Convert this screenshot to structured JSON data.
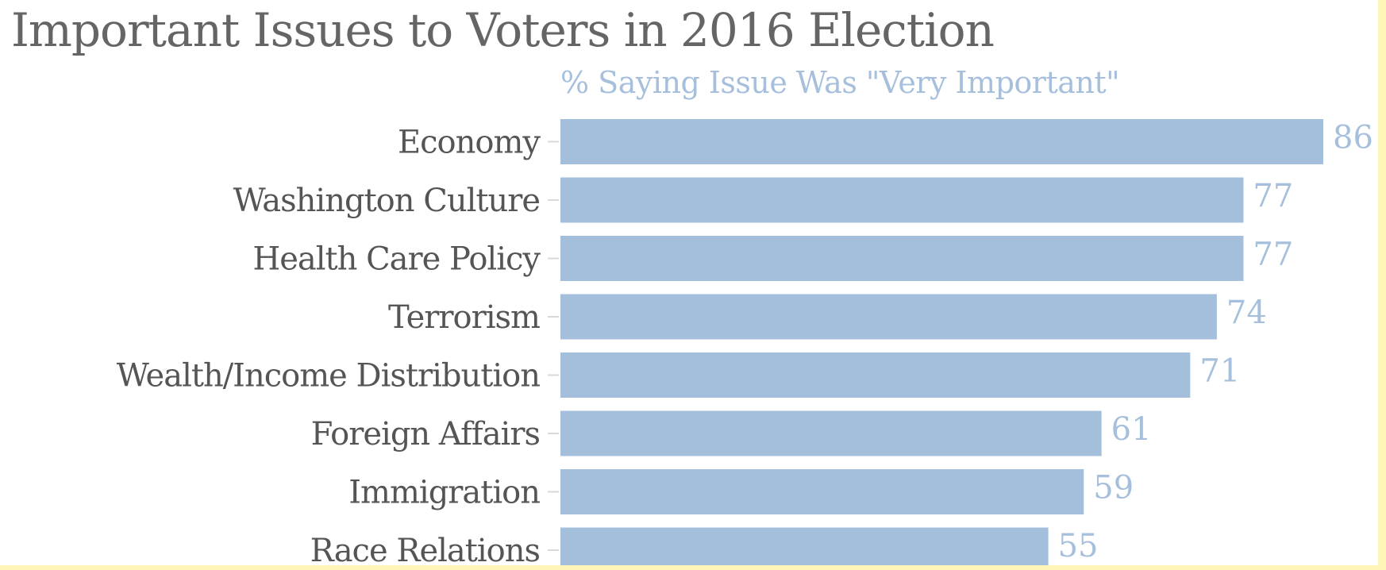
{
  "chart_data": {
    "type": "bar",
    "orientation": "horizontal",
    "title": "Important Issues to Voters in 2016 Election",
    "subtitle": "% Saying Issue Was \"Very Important\"",
    "categories": [
      "Economy",
      "Washington Culture",
      "Health Care Policy",
      "Terrorism",
      "Wealth/Income Distribution",
      "Foreign Affairs",
      "Immigration",
      "Race Relations"
    ],
    "values": [
      86,
      77,
      77,
      74,
      71,
      61,
      59,
      55
    ],
    "data_labels": [
      "86",
      "77",
      "77",
      "74",
      "71",
      "61",
      "59",
      "55"
    ],
    "xlim": [
      0,
      86
    ],
    "grid": false,
    "legend": "none",
    "colors": {
      "bar": "#a3bfdc",
      "value_label": "#a6bfdc",
      "category_label": "#555555",
      "title": "#656565",
      "tick": "#d8d8d8"
    }
  }
}
